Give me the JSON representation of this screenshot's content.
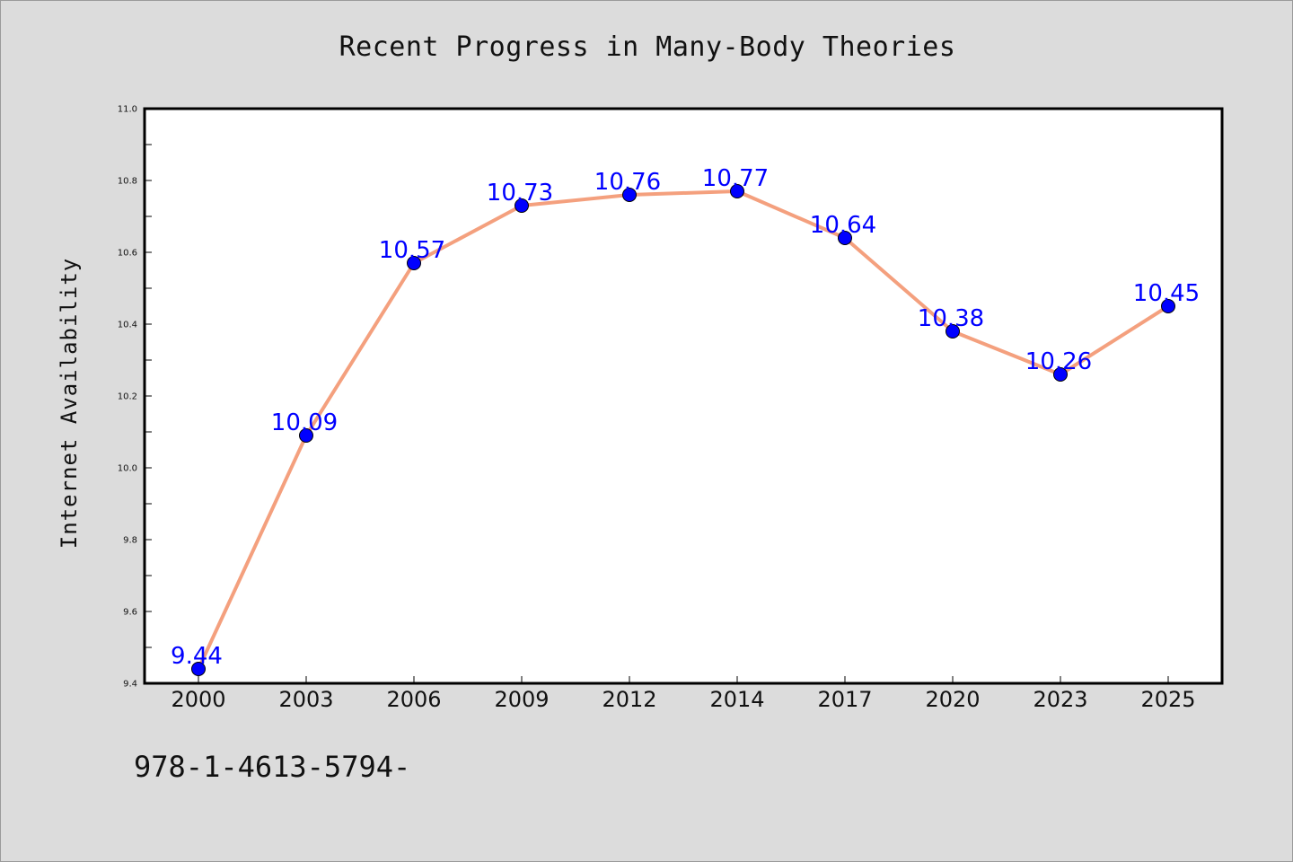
{
  "chart_data": {
    "type": "line",
    "title": "Recent Progress in Many-Body Theories",
    "xlabel": "",
    "ylabel": "Internet Availability",
    "categories": [
      "2000",
      "2003",
      "2006",
      "2009",
      "2012",
      "2014",
      "2017",
      "2020",
      "2023",
      "2025"
    ],
    "series": [
      {
        "values": [
          9.44,
          10.09,
          10.57,
          10.73,
          10.76,
          10.77,
          10.64,
          10.38,
          10.26,
          10.45
        ],
        "line_color": "#f4a07e",
        "marker_color": "#0000ff"
      }
    ],
    "data_labels": [
      "9.44",
      "10.09",
      "10.57",
      "10.73",
      "10.76",
      "10.77",
      "10.64",
      "10.38",
      "10.26",
      "10.45"
    ],
    "data_label_color": "#0000ff",
    "ylim": [
      9.4,
      11.0
    ],
    "yticks": [
      "9.4",
      "9.6",
      "9.8",
      "10.0",
      "10.2",
      "10.4",
      "10.6",
      "10.8",
      "11.0"
    ],
    "grid": false,
    "legend": "none"
  },
  "footer": {
    "text": "978-1-4613-5794-"
  }
}
